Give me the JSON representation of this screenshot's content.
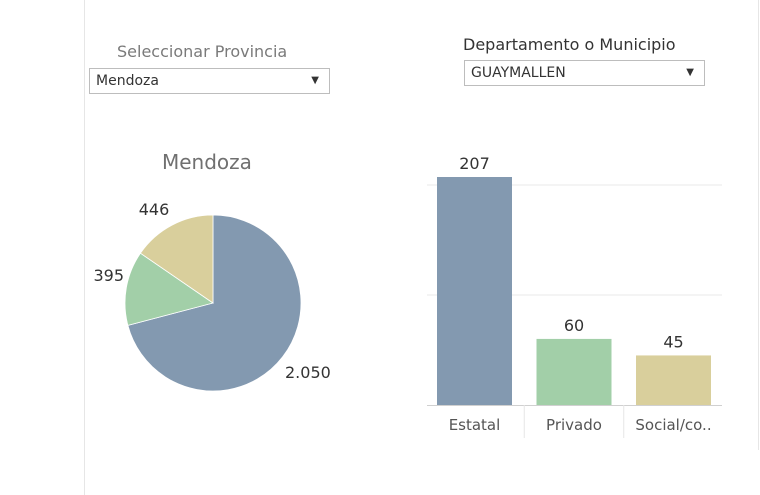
{
  "filters": {
    "province": {
      "label": "Seleccionar Provincia",
      "value": "Mendoza"
    },
    "department": {
      "label": "Departamento o Municipio",
      "value": "GUAYMALLEN"
    }
  },
  "colors": {
    "estatal": "#8399b0",
    "privado": "#a2cfa8",
    "social": "#d9cf9c",
    "grid": "#e8e8e8",
    "axis": "#d0d0d0"
  },
  "chart_data": [
    {
      "type": "pie",
      "title": "Mendoza",
      "slices": [
        {
          "name": "Estatal",
          "value": 2050,
          "label": "2.050"
        },
        {
          "name": "Privado",
          "value": 395,
          "label": "395"
        },
        {
          "name": "Social/comunitario",
          "value": 446,
          "label": "446"
        }
      ]
    },
    {
      "type": "bar",
      "title": "",
      "categories": [
        "Estatal",
        "Privado",
        "Social/co.."
      ],
      "values": [
        207,
        60,
        45
      ],
      "ylim": [
        0,
        207
      ],
      "grid": true
    }
  ]
}
